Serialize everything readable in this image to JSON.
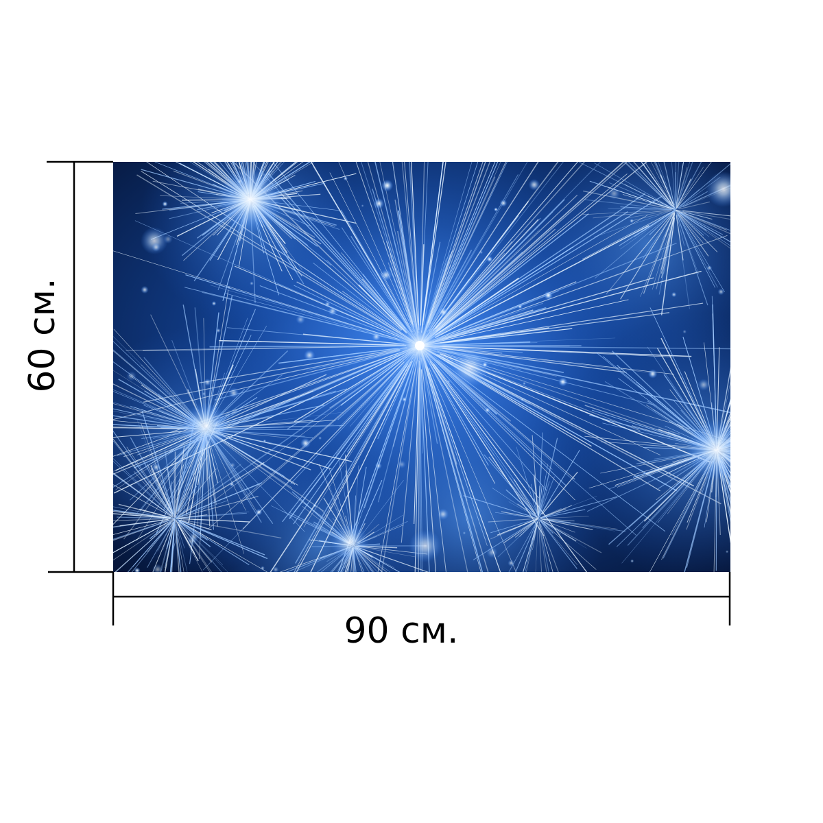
{
  "dimensions": {
    "width_label": "90 см.",
    "height_label": "60 см."
  },
  "photo": {
    "subject": "fireworks-image",
    "colors": {
      "deep": "#061a4a",
      "mid": "#0d2f7c",
      "bright": "#3d8bff",
      "spark": "#e8f4ff"
    }
  },
  "colors": {
    "background": "#ffffff",
    "dimension_line": "#000000"
  }
}
